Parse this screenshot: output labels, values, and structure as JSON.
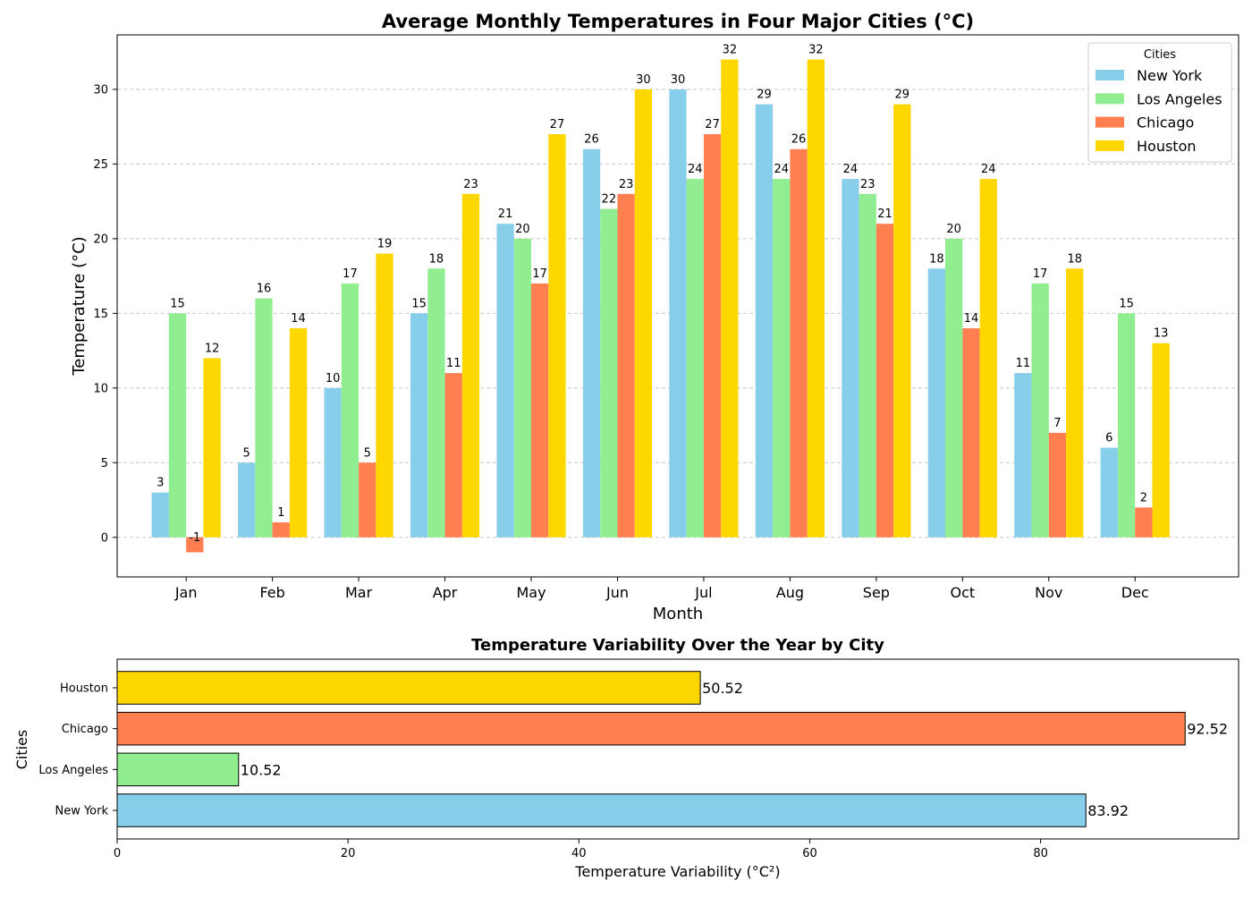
{
  "chart_data": [
    {
      "type": "bar",
      "title": "Average Monthly Temperatures in Four Major Cities (°C)",
      "xlabel": "Month",
      "ylabel": "Temperature (°C)",
      "categories": [
        "Jan",
        "Feb",
        "Mar",
        "Apr",
        "May",
        "Jun",
        "Jul",
        "Aug",
        "Sep",
        "Oct",
        "Nov",
        "Dec"
      ],
      "ylim": [
        -2.65,
        33.65
      ],
      "yticks": [
        0,
        5,
        10,
        15,
        20,
        25,
        30
      ],
      "grid": "y-dashed",
      "legend": {
        "title": "Cities",
        "placement": "top-right"
      },
      "series": [
        {
          "name": "New York",
          "color": "#87ceeb",
          "values": [
            3,
            5,
            10,
            15,
            21,
            26,
            30,
            29,
            24,
            18,
            11,
            6
          ]
        },
        {
          "name": "Los Angeles",
          "color": "#90ee90",
          "values": [
            15,
            16,
            17,
            18,
            20,
            22,
            24,
            24,
            23,
            20,
            17,
            15
          ]
        },
        {
          "name": "Chicago",
          "color": "#ff7f50",
          "values": [
            -1,
            1,
            5,
            11,
            17,
            23,
            27,
            26,
            21,
            14,
            7,
            2
          ]
        },
        {
          "name": "Houston",
          "color": "#ffd700",
          "values": [
            12,
            14,
            19,
            23,
            27,
            30,
            32,
            32,
            29,
            24,
            18,
            13
          ]
        }
      ]
    },
    {
      "type": "bar",
      "orientation": "horizontal",
      "title": "Temperature Variability Over the Year by City",
      "xlabel": "Temperature Variability (°C²)",
      "ylabel": "Cities",
      "categories": [
        "New York",
        "Los Angeles",
        "Chicago",
        "Houston"
      ],
      "values": [
        83.92,
        10.52,
        92.52,
        50.52
      ],
      "value_labels": [
        "83.92",
        "10.52",
        "92.52",
        "50.52"
      ],
      "colors": [
        "#87ceeb",
        "#90ee90",
        "#ff7f50",
        "#ffd700"
      ],
      "xlim": [
        0,
        97.15
      ],
      "xticks": [
        0,
        20,
        40,
        60,
        80
      ],
      "grid": "none"
    }
  ]
}
